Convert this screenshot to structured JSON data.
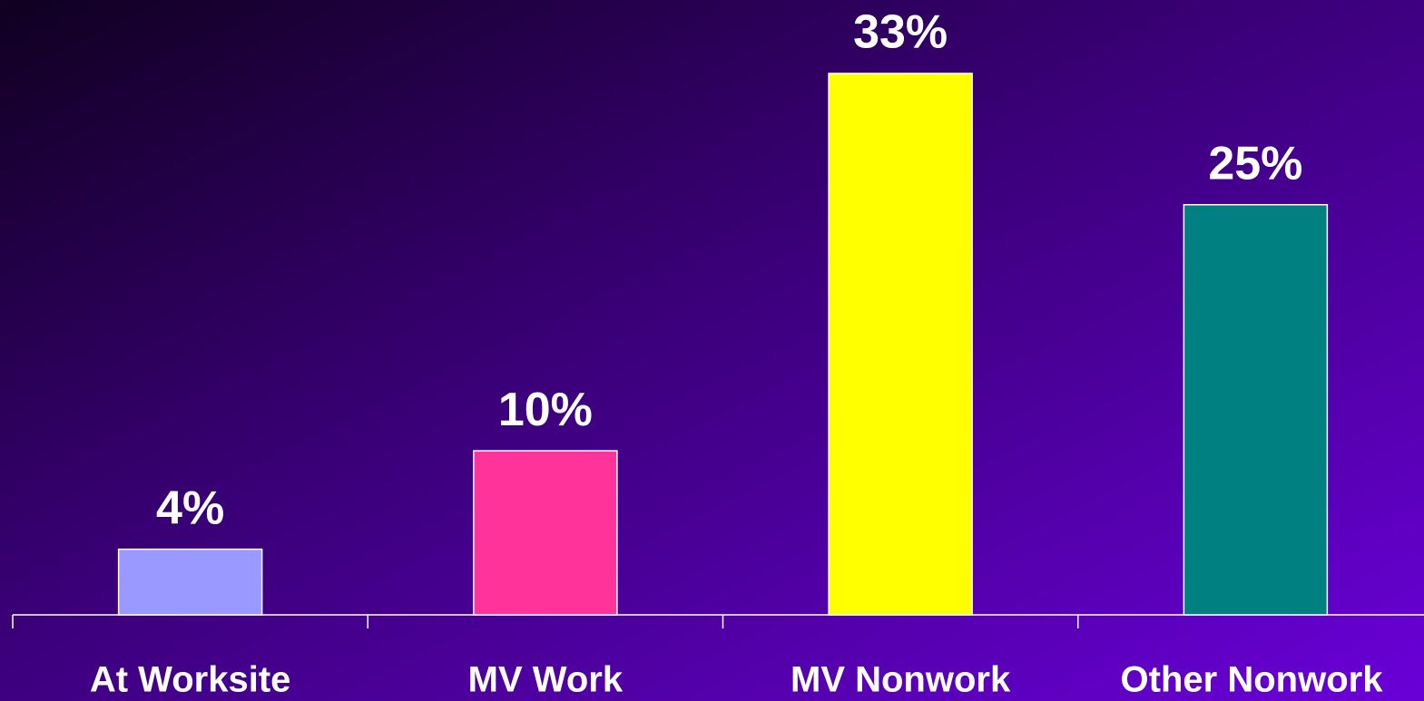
{
  "chart_data": {
    "type": "bar",
    "categories": [
      "At Worksite",
      "MV Work",
      "MV Nonwork",
      "Other Nonwork"
    ],
    "values": [
      4,
      10,
      33,
      25
    ],
    "value_labels": [
      "4%",
      "10%",
      "33%",
      "25%"
    ],
    "colors": [
      "#9999ff",
      "#ff3399",
      "#ffff00",
      "#008080"
    ]
  }
}
